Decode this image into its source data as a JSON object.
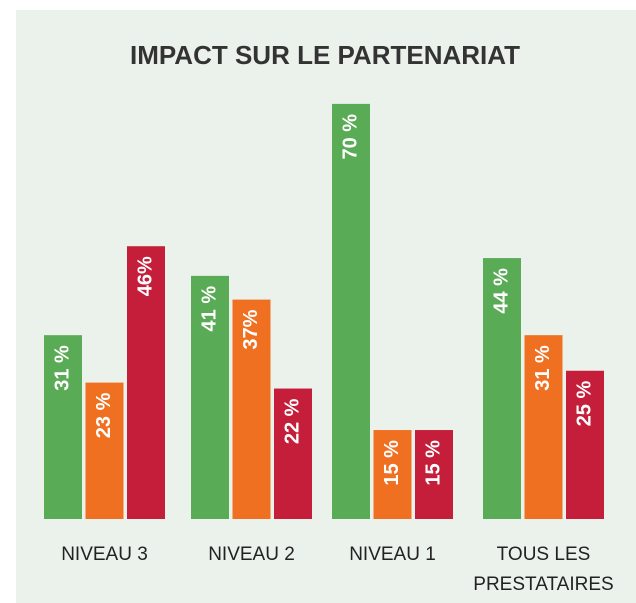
{
  "chart_data": {
    "type": "bar",
    "title": "IMPACT SUR LE PARTENARIAT",
    "categories": [
      "NIVEAU 3",
      "NIVEAU 2",
      "NIVEAU 1",
      "TOUS LES PRESTATAIRES"
    ],
    "series": [
      {
        "color": "#5aab55",
        "values": [
          31,
          41,
          70,
          44
        ],
        "value_labels": [
          "31 %",
          "41 %",
          "70 %",
          "44 %"
        ]
      },
      {
        "color": "#f07022",
        "values": [
          23,
          37,
          15,
          31
        ],
        "value_labels": [
          "23 %",
          "37%",
          "15 %",
          "31 %"
        ]
      },
      {
        "color": "#c41e3a",
        "values": [
          46,
          22,
          15,
          25
        ],
        "value_labels": [
          "46%",
          "22 %",
          "15 %",
          "25 %"
        ]
      }
    ]
  }
}
